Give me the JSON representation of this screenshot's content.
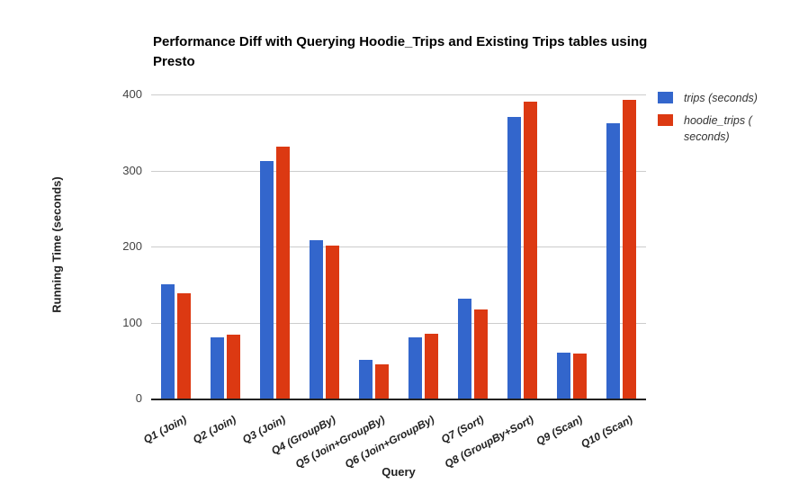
{
  "chart_data": {
    "type": "bar",
    "title": "Performance Diff with Querying Hoodie_Trips and Existing Trips tables using Presto",
    "xlabel": "Query",
    "ylabel": "Running Time (seconds)",
    "categories": [
      "Q1 (Join)",
      "Q2 (Join)",
      "Q3 (Join)",
      "Q4 (GroupBy)",
      "Q5 (Join+GroupBy)",
      "Q6 (Join+GroupBy)",
      "Q7 (Sort)",
      "Q8 (GroupBy+Sort)",
      "Q9 (Scan)",
      "Q10 (Scan)"
    ],
    "series": [
      {
        "name": "trips (seconds)",
        "key": "trips",
        "color": "#3366cc",
        "values": [
          150,
          81,
          313,
          208,
          51,
          81,
          131,
          371,
          61,
          362
        ]
      },
      {
        "name": "hoodie_trips (seconds)",
        "key": "hoodie_trips",
        "color": "#dc3912",
        "values": [
          138,
          84,
          332,
          201,
          45,
          85,
          117,
          390,
          59,
          393
        ]
      }
    ],
    "ylim": [
      0,
      400
    ],
    "yticks": [
      0,
      100,
      200,
      300,
      400
    ],
    "grid": true,
    "legend_position": "right",
    "legend_items": [
      {
        "key": "trips",
        "color": "#3366cc",
        "lines": [
          "trips (seconds)"
        ]
      },
      {
        "key": "hoodie_trips",
        "color": "#dc3912",
        "lines": [
          "hoodie_trips (",
          "seconds)"
        ]
      }
    ]
  },
  "colors": {
    "grid": "#cccccc",
    "axis": "#222222",
    "tick_label": "#444444",
    "category_label": "#222222",
    "title": "#000000",
    "series_blue": "#3366cc",
    "series_red": "#dc3912"
  }
}
